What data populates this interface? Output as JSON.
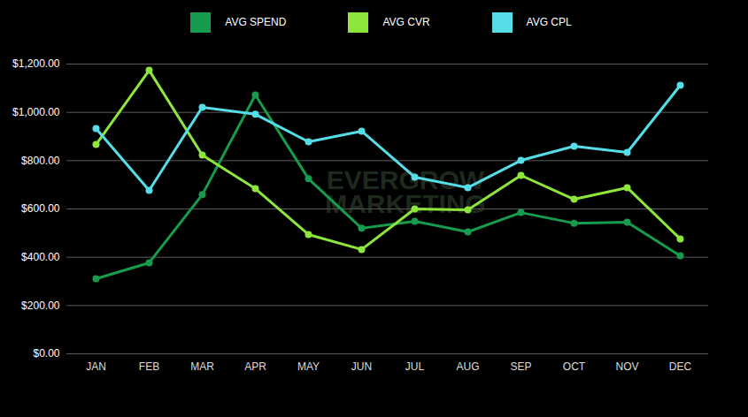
{
  "chart_data": {
    "type": "line",
    "categories": [
      "JAN",
      "FEB",
      "MAR",
      "APR",
      "MAY",
      "JUN",
      "JUL",
      "AUG",
      "SEP",
      "OCT",
      "NOV",
      "DEC"
    ],
    "series": [
      {
        "name": "AVG SPEND",
        "color": "#169c4d",
        "values": [
          311,
          377,
          659,
          1072,
          725,
          520,
          549,
          505,
          585,
          541,
          545,
          406
        ]
      },
      {
        "name": "AVG CVR",
        "color": "#8ee63c",
        "values": [
          867,
          1174,
          823,
          684,
          494,
          432,
          600,
          596,
          739,
          640,
          688,
          476
        ]
      },
      {
        "name": "AVG CPL",
        "color": "#55dde8",
        "values": [
          933,
          677,
          1021,
          992,
          878,
          922,
          732,
          688,
          801,
          860,
          834,
          1112
        ]
      }
    ],
    "ylim": [
      0,
      1200
    ],
    "yticks": [
      {
        "value": 0,
        "label": "$0.00"
      },
      {
        "value": 200,
        "label": "$200.00"
      },
      {
        "value": 400,
        "label": "$400.00"
      },
      {
        "value": 600,
        "label": "$600.00"
      },
      {
        "value": 800,
        "label": "$800.00"
      },
      {
        "value": 1000,
        "label": "$1,000.00"
      },
      {
        "value": 1200,
        "label": "$1,200.00"
      }
    ],
    "grid": true,
    "legend": "top",
    "marker": "circle",
    "annotations": [
      "EVERGROW",
      "MARKETING"
    ]
  }
}
